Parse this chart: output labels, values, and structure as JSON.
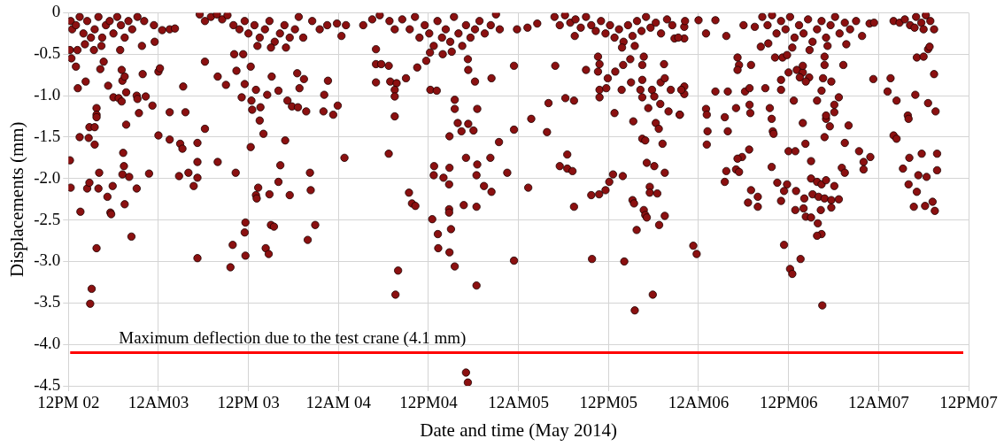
{
  "chart_data": {
    "type": "scatter",
    "xlabel": "Date and time (May 2014)",
    "ylabel": "Displacements (mm)",
    "xlim": [
      "2014-05-02T12:00",
      "2014-05-07T12:00"
    ],
    "xticks": [
      {
        "value": "2014-05-02T12:00",
        "label": "12PM 02"
      },
      {
        "value": "2014-05-03T00:00",
        "label": "12AM03"
      },
      {
        "value": "2014-05-03T12:00",
        "label": "12PM 03"
      },
      {
        "value": "2014-05-04T00:00",
        "label": "12AM 04"
      },
      {
        "value": "2014-05-04T12:00",
        "label": "12PM04"
      },
      {
        "value": "2014-05-05T00:00",
        "label": "12AM05"
      },
      {
        "value": "2014-05-05T12:00",
        "label": "12PM05"
      },
      {
        "value": "2014-05-06T00:00",
        "label": "12AM06"
      },
      {
        "value": "2014-05-06T12:00",
        "label": "12PM06"
      },
      {
        "value": "2014-05-07T00:00",
        "label": "12AM07"
      },
      {
        "value": "2014-05-07T12:00",
        "label": "12PM07"
      }
    ],
    "ylim": [
      -4.5,
      0
    ],
    "yticks": [
      0,
      -0.5,
      {
        "value": -1,
        "label": "-1.0"
      },
      -1.5,
      {
        "value": -2,
        "label": "-2.0"
      },
      -2.5,
      {
        "value": -3,
        "label": "-3.0"
      },
      -3.5,
      {
        "value": -4,
        "label": "-4.0"
      },
      -4.5
    ],
    "grid": true,
    "marker": "circle",
    "ref_lines": [
      {
        "axis": "y",
        "value": -4.1,
        "label": "Maximum deflection due to the test crane (4.1 mm)",
        "color": "#ff0000"
      }
    ],
    "series": [
      {
        "color": "#8b1010",
        "x": [
          "2014-05-02T12:12",
          "2014-05-02T12:18",
          "2014-05-02T13:36",
          "2014-05-02T13:15",
          "2014-05-02T13:00",
          "2014-05-02T13:30",
          "2014-05-02T14:42",
          "2014-05-02T14:48",
          "2014-05-02T14:18",
          "2014-05-02T14:30",
          "2014-05-02T14:48",
          "2014-05-02T15:06",
          "2014-05-02T14:54",
          "2014-05-02T15:45",
          "2014-05-02T15:30",
          "2014-05-02T15:45",
          "2014-05-02T15:45",
          "2014-05-02T15:45",
          "2014-05-02T15:30",
          "2014-05-02T16:06",
          "2014-05-02T16:00",
          "2014-05-02T16:42",
          "2014-05-02T16:15",
          "2014-05-02T17:18",
          "2014-05-02T17:12",
          "2014-05-02T17:36",
          "2014-05-02T17:42",
          "2014-05-02T17:54",
          "2014-05-02T18:00",
          "2014-05-02T18:42",
          "2014-05-02T19:06",
          "2014-05-02T19:18",
          "2014-05-02T19:24",
          "2014-05-02T19:12",
          "2014-05-02T19:30",
          "2014-05-02T19:42",
          "2014-05-02T19:12",
          "2014-05-02T19:30",
          "2014-05-02T19:06",
          "2014-05-02T19:42",
          "2014-05-02T20:06",
          "2014-05-02T20:24",
          "2014-05-02T21:06",
          "2014-05-02T21:12",
          "2014-05-02T21:24",
          "2014-05-02T21:06",
          "2014-05-02T21:54",
          "2014-05-02T22:18",
          "2014-05-02T22:45",
          "2014-05-02T23:12",
          "2014-05-02T23:30",
          "2014-05-03T00:00",
          "2014-05-03T00:00",
          "2014-05-03T00:12",
          "2014-05-03T00:30",
          "2014-05-03T01:30",
          "2014-05-03T01:30",
          "2014-05-03T02:12",
          "2014-05-03T02:54",
          "2014-05-03T03:12",
          "2014-05-03T02:45",
          "2014-05-03T03:18",
          "2014-05-03T03:36",
          "2014-05-03T04:00",
          "2014-05-03T04:42",
          "2014-05-03T05:12",
          "2014-05-03T05:12",
          "2014-05-03T05:12",
          "2014-05-03T05:12",
          "2014-05-03T06:12",
          "2014-05-03T06:12",
          "2014-05-03T07:54",
          "2014-05-03T07:54",
          "2014-05-03T09:00",
          "2014-05-03T09:36",
          "2014-05-03T09:54",
          "2014-05-03T10:18",
          "2014-05-03T10:24",
          "2014-05-03T10:06",
          "2014-05-03T11:18",
          "2014-05-03T11:30",
          "2014-05-03T11:06",
          "2014-05-03T11:30",
          "2014-05-03T11:36",
          "2014-05-03T11:36",
          "2014-05-03T12:18",
          "2014-05-03T12:18",
          "2014-05-03T12:24",
          "2014-05-03T12:30",
          "2014-05-03T13:00",
          "2014-05-03T13:00",
          "2014-05-03T13:06",
          "2014-05-03T13:18",
          "2014-05-03T13:30",
          "2014-05-03T13:36",
          "2014-05-03T14:00",
          "2014-05-03T14:30",
          "2014-05-03T14:18",
          "2014-05-03T14:42",
          "2014-05-03T14:48",
          "2014-05-03T15:00",
          "2014-05-03T15:24",
          "2014-05-03T15:06",
          "2014-05-03T16:00",
          "2014-05-03T16:00",
          "2014-05-03T16:15",
          "2014-05-03T16:54",
          "2014-05-03T17:12",
          "2014-05-03T17:30",
          "2014-05-03T17:48",
          "2014-05-03T18:30",
          "2014-05-03T18:36",
          "2014-05-03T18:48",
          "2014-05-03T19:24",
          "2014-05-03T19:42",
          "2014-05-03T20:12",
          "2014-05-03T20:18",
          "2014-05-03T19:54",
          "2014-05-03T20:54",
          "2014-05-03T22:06",
          "2014-05-03T22:00",
          "2014-05-03T22:36",
          "2014-05-03T23:18",
          "2014-05-03T23:54",
          "2014-05-04T00:48"
        ],
        "values": [
          -1.78,
          -2.11,
          -2.4,
          -0.91,
          -0.65,
          -1.5,
          -1.51,
          -1.38,
          -0.83,
          -2.12,
          -2.05,
          -3.33,
          -3.51,
          -2.84,
          -1.59,
          -1.15,
          -1.23,
          -1.26,
          -1.38,
          -1.93,
          -2.12,
          -0.59,
          -0.68,
          -0.88,
          -2.22,
          -2.41,
          -2.43,
          -2.09,
          -1.02,
          -1.03,
          -1.07,
          -1.69,
          -1.85,
          -1.95,
          -2.31,
          -1.35,
          -0.82,
          -0.77,
          -0.69,
          -0.96,
          -1.98,
          -2.7,
          -1.0,
          -1.04,
          -1.21,
          -2.12,
          -0.74,
          -1.01,
          -1.94,
          -1.12,
          -0.35,
          -0.71,
          -1.48,
          -0.67,
          -0.21,
          -1.2,
          -1.53,
          -0.19,
          -1.58,
          -1.64,
          -1.97,
          -0.89,
          -1.2,
          -1.93,
          -2.09,
          -1.57,
          -1.8,
          -1.99,
          -2.96,
          -0.59,
          -1.4,
          -1.8,
          -0.77,
          -0.87,
          -3.07,
          -2.8,
          -1.93,
          -0.7,
          -0.5,
          -0.5,
          -0.86,
          -1.02,
          -2.65,
          -2.93,
          -2.53,
          -1.62,
          -0.65,
          -1.06,
          -1.17,
          -0.93,
          -2.2,
          -2.24,
          -2.11,
          -1.3,
          -1.14,
          -1.46,
          -0.99,
          -2.84,
          -2.91,
          -2.19,
          -2.56,
          -2.58,
          -0.77,
          -0.94,
          -2.04,
          -1.84,
          -1.54,
          -1.06,
          -2.2,
          -1.13,
          -0.73,
          -1.14,
          -0.91,
          -0.8,
          -1.19,
          -1.93,
          -2.14,
          -2.74,
          -2.56,
          -0.99,
          -1.19,
          -0.82,
          -1.23,
          -1.12,
          -1.75
        ]
      },
      {
        "color": "#8b1010",
        "x": [
          "2014-05-02T12:18",
          "2014-05-02T12:30",
          "2014-05-02T13:00",
          "2014-05-02T13:30",
          "2014-05-02T14:00",
          "2014-05-02T14:30",
          "2014-05-02T15:00",
          "2014-05-02T15:30",
          "2014-05-02T16:00",
          "2014-05-02T16:30",
          "2014-05-02T17:00",
          "2014-05-02T17:30",
          "2014-05-02T18:00",
          "2014-05-02T18:30",
          "2014-05-02T19:00",
          "2014-05-02T19:30",
          "2014-05-02T20:00",
          "2014-05-02T20:30",
          "2014-05-02T21:12",
          "2014-05-02T12:12",
          "2014-05-02T12:24",
          "2014-05-02T13:12",
          "2014-05-02T14:12",
          "2014-05-02T15:24",
          "2014-05-02T16:24",
          "2014-05-02T18:54",
          "2014-05-02T21:48",
          "2014-05-02T22:06",
          "2014-05-02T23:24",
          "2014-05-03T01:30",
          "2014-05-03T05:30",
          "2014-05-03T06:12",
          "2014-05-03T07:00",
          "2014-05-03T07:48",
          "2014-05-03T08:30",
          "2014-05-03T09:12",
          "2014-05-03T10:00",
          "2014-05-03T10:48",
          "2014-05-03T11:30",
          "2014-05-03T12:00",
          "2014-05-03T12:48",
          "2014-05-03T13:30",
          "2014-05-03T14:12",
          "2014-05-03T14:48",
          "2014-05-03T15:30",
          "2014-05-03T16:12",
          "2014-05-03T16:48",
          "2014-05-03T17:30",
          "2014-05-03T18:12",
          "2014-05-03T18:42",
          "2014-05-03T13:12",
          "2014-05-03T15:00",
          "2014-05-03T17:00",
          "2014-05-03T19:18",
          "2014-05-03T20:30",
          "2014-05-03T21:30",
          "2014-05-03T22:30",
          "2014-05-03T23:48",
          "2014-05-04T00:24",
          "2014-05-04T01:00"
        ],
        "values": [
          -0.1,
          -0.2,
          -0.15,
          -0.05,
          -0.25,
          -0.1,
          -0.3,
          -0.2,
          -0.05,
          -0.3,
          -0.15,
          -0.1,
          -0.25,
          -0.05,
          -0.15,
          -0.3,
          -0.1,
          -0.2,
          -0.05,
          -0.45,
          -0.55,
          -0.45,
          -0.38,
          -0.45,
          -0.4,
          -0.45,
          -0.4,
          -0.1,
          -0.15,
          -0.2,
          -0.02,
          -0.1,
          -0.05,
          -0.02,
          -0.08,
          -0.03,
          -0.15,
          -0.2,
          -0.1,
          -0.25,
          -0.15,
          -0.3,
          -0.2,
          -0.1,
          -0.35,
          -0.25,
          -0.15,
          -0.3,
          -0.2,
          -0.05,
          -0.4,
          -0.42,
          -0.42,
          -0.3,
          -0.1,
          -0.2,
          -0.15,
          -0.13,
          -0.28,
          -0.15
        ]
      },
      {
        "color": "#8b1010",
        "x": [
          "2014-05-04T05:00",
          "2014-05-04T05:00",
          "2014-05-04T05:42",
          "2014-05-04T06:42",
          "2014-05-04T05:00",
          "2014-05-04T06:54",
          "2014-05-04T07:45",
          "2014-05-04T07:30",
          "2014-05-04T07:30",
          "2014-05-04T07:30",
          "2014-05-04T06:42",
          "2014-05-04T09:00",
          "2014-05-04T10:30",
          "2014-05-04T11:42",
          "2014-05-04T12:15",
          "2014-05-04T13:06",
          "2014-05-04T15:30",
          "2014-05-04T15:30",
          "2014-05-04T18:30",
          "2014-05-04T15:54",
          "2014-05-04T17:18",
          "2014-05-04T16:24",
          "2014-05-04T18:00",
          "2014-05-04T14:48",
          "2014-05-04T17:15",
          "2014-05-04T17:18",
          "2014-05-04T18:12",
          "2014-05-04T20:24",
          "2014-05-04T21:24",
          "2014-05-04T23:24",
          "2014-05-04T23:24",
          "2014-05-04T17:00",
          "2014-05-04T20:15",
          "2014-05-04T12:45",
          "2014-05-04T14:48",
          "2014-05-04T12:42",
          "2014-05-04T14:00",
          "2014-05-04T18:30",
          "2014-05-04T18:24",
          "2014-05-04T14:45",
          "2014-05-04T19:24",
          "2014-05-04T20:24",
          "2014-05-04T22:30",
          "2014-05-05T01:18",
          "2014-05-04T09:24",
          "2014-05-04T09:48",
          "2014-05-04T10:15",
          "2014-05-04T14:45",
          "2014-05-04T14:45",
          "2014-05-04T16:42",
          "2014-05-04T18:24",
          "2014-05-04T12:30",
          "2014-05-04T13:15",
          "2014-05-04T15:00",
          "2014-05-04T13:18",
          "2014-05-04T14:48",
          "2014-05-04T15:30",
          "2014-05-04T07:57",
          "2014-05-04T07:36",
          "2014-05-04T18:24",
          "2014-05-04T17:00",
          "2014-05-04T17:15",
          "2014-05-04T23:24",
          "2014-05-05T01:42",
          "2014-05-05T03:48",
          "2014-05-05T04:00",
          "2014-05-05T04:54",
          "2014-05-05T06:15",
          "2014-05-05T07:24",
          "2014-05-05T06:30",
          "2014-05-05T05:30",
          "2014-05-05T06:30",
          "2014-05-05T07:12",
          "2014-05-05T07:24",
          "2014-05-05T09:00",
          "2014-05-05T09:48",
          "2014-05-05T09:42",
          "2014-05-05T10:45",
          "2014-05-05T11:36",
          "2014-05-05T12:06",
          "2014-05-05T12:36",
          "2014-05-05T13:54",
          "2014-05-05T14:06",
          "2014-05-05T15:30",
          "2014-05-05T17:54",
          "2014-05-05T15:45",
          "2014-05-05T15:12",
          "2014-05-05T15:24",
          "2014-05-05T16:42",
          "2014-05-05T16:54",
          "2014-05-05T17:06",
          "2014-05-05T18:45",
          "2014-05-05T19:30",
          "2014-05-05T17:30",
          "2014-05-05T17:30",
          "2014-05-05T18:30",
          "2014-05-05T17:06",
          "2014-05-05T18:06",
          "2014-05-05T19:30",
          "2014-05-05T16:30",
          "2014-05-05T16:54",
          "2014-05-05T19:12",
          "2014-05-05T15:18",
          "2014-05-05T18:18",
          "2014-05-05T18:42",
          "2014-05-05T12:48",
          "2014-05-05T17:18",
          "2014-05-05T18:54",
          "2014-05-05T20:00",
          "2014-05-05T21:30",
          "2014-05-05T10:36",
          "2014-05-05T10:48",
          "2014-05-05T10:36",
          "2014-05-05T11:54",
          "2014-05-05T10:48",
          "2014-05-05T10:48",
          "2014-05-05T11:42",
          "2014-05-05T12:54",
          "2014-05-05T13:45",
          "2014-05-05T13:57",
          "2014-05-05T14:54",
          "2014-05-05T15:00",
          "2014-05-05T16:15",
          "2014-05-05T16:30",
          "2014-05-05T16:30",
          "2014-05-05T16:30",
          "2014-05-05T17:48",
          "2014-05-05T18:06",
          "2014-05-05T18:57",
          "2014-05-05T19:24",
          "2014-05-05T19:30",
          "2014-05-05T20:18",
          "2014-05-05T21:42",
          "2014-05-05T16:42",
          "2014-05-05T07:30"
        ],
        "values": [
          -0.44,
          -0.62,
          -0.62,
          -0.64,
          -0.84,
          -0.83,
          -0.85,
          -0.93,
          -1.01,
          -1.25,
          -1.7,
          -0.79,
          -0.66,
          -0.58,
          -0.93,
          -0.94,
          -1.05,
          -1.16,
          -1.16,
          -1.33,
          -1.34,
          -1.43,
          -1.42,
          -1.49,
          -0.56,
          -0.69,
          -0.83,
          -0.79,
          -1.56,
          -1.41,
          -0.64,
          -1.75,
          -1.75,
          -1.85,
          -1.87,
          -1.96,
          -1.99,
          -1.83,
          -1.96,
          -2.07,
          -2.09,
          -2.16,
          -1.93,
          -2.11,
          -2.17,
          -2.3,
          -2.33,
          -2.37,
          -2.41,
          -2.32,
          -2.34,
          -2.49,
          -2.67,
          -2.61,
          -2.84,
          -2.89,
          -3.06,
          -3.11,
          -3.4,
          -3.29,
          -4.34,
          -4.46,
          -2.99,
          -1.28,
          -1.44,
          -1.09,
          -0.64,
          -1.03,
          -1.06,
          -1.71,
          -1.85,
          -1.88,
          -1.91,
          -2.34,
          -0.69,
          -2.97,
          -2.2,
          -2.19,
          -2.14,
          -2.04,
          -1.95,
          -1.97,
          -3.0,
          -3.59,
          -3.4,
          -2.62,
          -2.26,
          -2.3,
          -2.38,
          -2.44,
          -2.47,
          -2.56,
          -2.45,
          -2.1,
          -2.17,
          -2.18,
          -1.81,
          -1.85,
          -1.93,
          -1.52,
          -1.54,
          -1.58,
          -1.31,
          -1.33,
          -1.4,
          -1.21,
          -1.15,
          -1.1,
          -1.19,
          -1.23,
          -0.53,
          -0.62,
          -0.71,
          -0.79,
          -0.93,
          -1.02,
          -0.91,
          -0.71,
          -0.93,
          -0.63,
          -0.56,
          -0.84,
          -0.93,
          -0.63,
          -0.81,
          -1.02,
          -0.93,
          -1.01,
          -0.84,
          -0.62,
          -0.79,
          -0.93,
          -0.93,
          -0.53,
          -0.28
        ]
      },
      {
        "color": "#8b1010",
        "x": [
          "2014-05-04T03:18",
          "2014-05-04T04:30",
          "2014-05-04T05:30",
          "2014-05-04T06:48",
          "2014-05-04T07:30",
          "2014-05-04T08:30",
          "2014-05-04T09:30",
          "2014-05-04T10:12",
          "2014-05-04T10:48",
          "2014-05-04T11:30",
          "2014-05-04T12:06",
          "2014-05-04T12:42",
          "2014-05-04T13:12",
          "2014-05-04T13:48",
          "2014-05-04T14:18",
          "2014-05-04T14:54",
          "2014-05-04T15:24",
          "2014-05-04T16:00",
          "2014-05-04T16:30",
          "2014-05-04T17:00",
          "2014-05-04T17:36",
          "2014-05-04T18:12",
          "2014-05-04T18:48",
          "2014-05-04T19:30",
          "2014-05-04T20:18",
          "2014-05-04T21:30",
          "2014-05-04T21:00",
          "2014-05-04T23:48",
          "2014-05-05T01:12",
          "2014-05-05T02:30",
          "2014-05-04T15:06",
          "2014-05-04T13:54",
          "2014-05-04T12:12",
          "2014-05-05T04:48",
          "2014-05-05T05:30",
          "2014-05-05T06:12",
          "2014-05-05T06:54",
          "2014-05-05T07:36",
          "2014-05-05T08:18",
          "2014-05-05T09:00",
          "2014-05-05T09:42",
          "2014-05-05T10:18",
          "2014-05-05T11:00",
          "2014-05-05T11:36",
          "2014-05-05T12:12",
          "2014-05-05T12:48",
          "2014-05-05T13:24",
          "2014-05-05T14:00",
          "2014-05-05T14:36",
          "2014-05-05T15:12",
          "2014-05-05T15:48",
          "2014-05-05T16:24",
          "2014-05-05T17:00",
          "2014-05-05T17:36",
          "2014-05-05T18:18",
          "2014-05-05T19:00",
          "2014-05-05T19:48",
          "2014-05-05T20:30",
          "2014-05-05T21:18",
          "2014-05-05T22:12",
          "2014-05-05T13:48",
          "2014-05-05T15:30"
        ],
        "values": [
          -0.15,
          -0.08,
          -0.03,
          -0.1,
          -0.2,
          -0.08,
          -0.2,
          -0.05,
          -0.3,
          -0.15,
          -0.25,
          -0.4,
          -0.1,
          -0.3,
          -0.2,
          -0.35,
          -0.05,
          -0.25,
          -0.4,
          -0.15,
          -0.3,
          -0.2,
          -0.1,
          -0.25,
          -0.15,
          -0.2,
          -0.02,
          -0.2,
          -0.18,
          -0.13,
          -0.47,
          -0.5,
          -0.48,
          -0.05,
          -0.15,
          -0.03,
          -0.12,
          -0.08,
          -0.18,
          -0.05,
          -0.15,
          -0.22,
          -0.1,
          -0.25,
          -0.15,
          -0.3,
          -0.2,
          -0.35,
          -0.15,
          -0.28,
          -0.1,
          -0.22,
          -0.05,
          -0.18,
          -0.12,
          -0.25,
          -0.08,
          -0.15,
          -0.3,
          -0.1,
          -0.42,
          -0.4
        ]
      },
      {
        "color": "#8b1010",
        "x": [
          "2014-05-05T22:06",
          "2014-05-05T22:06",
          "2014-05-05T20:48",
          "2014-05-06T00:00",
          "2014-05-06T01:00",
          "2014-05-06T02:15",
          "2014-05-06T03:42",
          "2014-05-06T06:00",
          "2014-05-06T07:30",
          "2014-05-06T08:18",
          "2014-05-06T09:18",
          "2014-05-05T22:06",
          "2014-05-05T22:06",
          "2014-05-05T21:30",
          "2014-05-06T01:00",
          "2014-05-06T01:12",
          "2014-05-06T01:06",
          "2014-05-06T01:06",
          "2014-05-06T02:15",
          "2014-05-06T03:54",
          "2014-05-06T03:30",
          "2014-05-06T03:54",
          "2014-05-06T05:00",
          "2014-05-06T05:12",
          "2014-05-06T05:24",
          "2014-05-06T05:12",
          "2014-05-06T07:00",
          "2014-05-06T06:12",
          "2014-05-06T06:48",
          "2014-05-06T06:54",
          "2014-05-06T06:48",
          "2014-05-06T08:54",
          "2014-05-06T11:00",
          "2014-05-06T09:30",
          "2014-05-06T09:45",
          "2014-05-06T09:54",
          "2014-05-06T10:00",
          "2014-05-06T11:00",
          "2014-05-06T10:12",
          "2014-05-06T11:12",
          "2014-05-06T11:48",
          "2014-05-06T06:45",
          "2014-05-06T05:48",
          "2014-05-06T05:12",
          "2014-05-06T03:42",
          "2014-05-06T05:00",
          "2014-05-06T05:24",
          "2014-05-06T03:30",
          "2014-05-06T07:00",
          "2014-05-06T07:54",
          "2014-05-06T06:36",
          "2014-05-06T07:54",
          "2014-05-06T09:45",
          "2014-05-06T10:30",
          "2014-05-06T11:48",
          "2014-05-06T11:24",
          "2014-05-06T11:00",
          "2014-05-06T13:00",
          "2014-05-06T12:00",
          "2014-05-06T12:54",
          "2014-05-06T15:00",
          "2014-05-06T13:54",
          "2014-05-06T14:15",
          "2014-05-06T12:42",
          "2014-05-06T13:06",
          "2014-05-06T13:54",
          "2014-05-06T13:30",
          "2014-05-06T14:45",
          "2014-05-06T14:18",
          "2014-05-06T12:00",
          "2014-05-06T13:54",
          "2014-05-06T16:48",
          "2014-05-06T16:48",
          "2014-05-06T19:18",
          "2014-05-06T15:48",
          "2014-05-06T16:24",
          "2014-05-06T17:42",
          "2014-05-06T16:36",
          "2014-05-06T17:00",
          "2014-05-06T17:00",
          "2014-05-06T17:30",
          "2014-05-06T18:06",
          "2014-05-06T18:06",
          "2014-05-06T18:42",
          "2014-05-06T16:48",
          "2014-05-06T20:00",
          "2014-05-06T19:30",
          "2014-05-06T19:06",
          "2014-05-06T19:30",
          "2014-05-06T21:24",
          "2014-05-06T22:00",
          "2014-05-06T22:00",
          "2014-05-06T22:54",
          "2014-05-06T15:00",
          "2014-05-06T15:48",
          "2014-05-06T16:24",
          "2014-05-06T17:00",
          "2014-05-06T18:06",
          "2014-05-06T15:12",
          "2014-05-06T16:00",
          "2014-05-06T16:48",
          "2014-05-06T17:42",
          "2014-05-06T18:42",
          "2014-05-06T14:06",
          "2014-05-06T12:54",
          "2014-05-06T14:00",
          "2014-05-06T16:18",
          "2014-05-06T17:42",
          "2014-05-06T14:18",
          "2014-05-06T15:00",
          "2014-05-06T15:54",
          "2014-05-06T16:24",
          "2014-05-06T15:48",
          "2014-05-06T11:24",
          "2014-05-06T12:12",
          "2014-05-06T12:30",
          "2014-05-06T13:36",
          "2014-05-06T16:30",
          "2014-05-05T23:18",
          "2014-05-05T23:45",
          "2014-05-06T23:18",
          "2014-05-07T01:36",
          "2014-05-07T01:12",
          "2014-05-07T02:24",
          "2014-05-07T04:54",
          "2014-05-07T02:00",
          "2014-05-07T02:24",
          "2014-05-07T03:54",
          "2014-05-07T04:00",
          "2014-05-07T06:36",
          "2014-05-07T07:36",
          "2014-05-07T07:24",
          "2014-05-07T05:06",
          "2014-05-07T06:00",
          "2014-05-07T06:36",
          "2014-05-07T06:48",
          "2014-05-07T04:06",
          "2014-05-07T05:45",
          "2014-05-07T07:48",
          "2014-05-07T03:15",
          "2014-05-07T05:18",
          "2014-05-07T06:24",
          "2014-05-07T07:48",
          "2014-05-07T04:00",
          "2014-05-07T05:06",
          "2014-05-07T04:42",
          "2014-05-07T06:12",
          "2014-05-07T07:12",
          "2014-05-07T07:30"
        ],
        "values": [
          -0.17,
          -0.31,
          -0.31,
          -0.09,
          -0.25,
          -0.09,
          -0.28,
          -0.15,
          -0.17,
          -0.41,
          -0.37,
          -0.89,
          -0.98,
          -1.23,
          -1.16,
          -1.43,
          -1.59,
          -1.23,
          -0.95,
          -0.95,
          -1.26,
          -1.43,
          -1.15,
          -0.54,
          -0.63,
          -0.69,
          -0.63,
          -0.95,
          -1.11,
          -1.21,
          -0.91,
          -0.91,
          -0.93,
          -1.15,
          -1.28,
          -1.43,
          -1.46,
          -0.81,
          -0.54,
          -0.54,
          -0.51,
          -1.65,
          -1.74,
          -1.76,
          -1.91,
          -1.89,
          -1.92,
          -2.04,
          -2.14,
          -2.22,
          -2.29,
          -2.34,
          -1.86,
          -2.05,
          -2.07,
          -2.15,
          -2.27,
          -2.15,
          -1.67,
          -1.67,
          -1.79,
          -1.33,
          -1.58,
          -1.06,
          -0.69,
          -0.72,
          -0.78,
          -0.78,
          -0.83,
          -0.72,
          -0.64,
          -0.53,
          -0.63,
          -0.63,
          -1.06,
          -0.94,
          -0.83,
          -0.79,
          -1.28,
          -1.24,
          -1.37,
          -1.11,
          -1.2,
          -1.02,
          -1.5,
          -1.36,
          -1.57,
          -1.87,
          -1.93,
          -1.67,
          -1.8,
          -1.89,
          -1.74,
          -2.0,
          -2.04,
          -2.07,
          -2.02,
          -2.09,
          -2.19,
          -2.22,
          -2.24,
          -2.26,
          -2.25,
          -2.24,
          -2.38,
          -2.36,
          -2.38,
          -2.35,
          -2.46,
          -2.47,
          -2.54,
          -2.67,
          -2.69,
          -2.8,
          -3.09,
          -3.15,
          -2.97,
          -3.53,
          -2.81,
          -2.91,
          -0.8,
          -0.79,
          -0.95,
          -1.06,
          -0.99,
          -1.48,
          -1.52,
          -1.24,
          -1.28,
          -1.09,
          -1.19,
          -0.74,
          -0.54,
          -0.53,
          -0.44,
          -0.41,
          -1.75,
          -1.7,
          -1.7,
          -1.88,
          -1.96,
          -1.98,
          -1.9,
          -2.07,
          -2.16,
          -2.34,
          -2.33,
          -2.28,
          -2.39
        ]
      },
      {
        "color": "#8b1010",
        "x": [
          "2014-05-06T08:30",
          "2014-05-06T09:12",
          "2014-05-06T09:48",
          "2014-05-06T10:24",
          "2014-05-06T11:00",
          "2014-05-06T11:36",
          "2014-05-06T12:12",
          "2014-05-06T12:48",
          "2014-05-06T13:24",
          "2014-05-06T14:00",
          "2014-05-06T14:36",
          "2014-05-06T15:12",
          "2014-05-06T15:48",
          "2014-05-06T16:24",
          "2014-05-06T17:00",
          "2014-05-06T17:36",
          "2014-05-06T18:12",
          "2014-05-06T18:48",
          "2014-05-06T19:30",
          "2014-05-06T20:12",
          "2014-05-06T21:00",
          "2014-05-06T21:48",
          "2014-05-06T22:48",
          "2014-05-06T23:24",
          "2014-05-06T12:30",
          "2014-05-06T14:48",
          "2014-05-06T17:12",
          "2014-05-06T19:42",
          "2014-05-07T02:00",
          "2014-05-07T02:48",
          "2014-05-07T03:30",
          "2014-05-07T04:12",
          "2014-05-07T05:00",
          "2014-05-07T05:42",
          "2014-05-07T06:18",
          "2014-05-07T06:54",
          "2014-05-07T07:24",
          "2014-05-07T06:00",
          "2014-05-07T04:48"
        ],
        "values": [
          -0.05,
          -0.15,
          -0.03,
          -0.25,
          -0.1,
          -0.2,
          -0.05,
          -0.3,
          -0.15,
          -0.25,
          -0.08,
          -0.35,
          -0.2,
          -0.1,
          -0.3,
          -0.15,
          -0.05,
          -0.25,
          -0.12,
          -0.2,
          -0.1,
          -0.28,
          -0.13,
          -0.12,
          -0.42,
          -0.45,
          -0.4,
          -0.38,
          -0.1,
          -0.12,
          -0.08,
          -0.15,
          -0.05,
          -0.12,
          -0.03,
          -0.1,
          -0.2,
          -0.2,
          -0.18
        ]
      }
    ]
  }
}
